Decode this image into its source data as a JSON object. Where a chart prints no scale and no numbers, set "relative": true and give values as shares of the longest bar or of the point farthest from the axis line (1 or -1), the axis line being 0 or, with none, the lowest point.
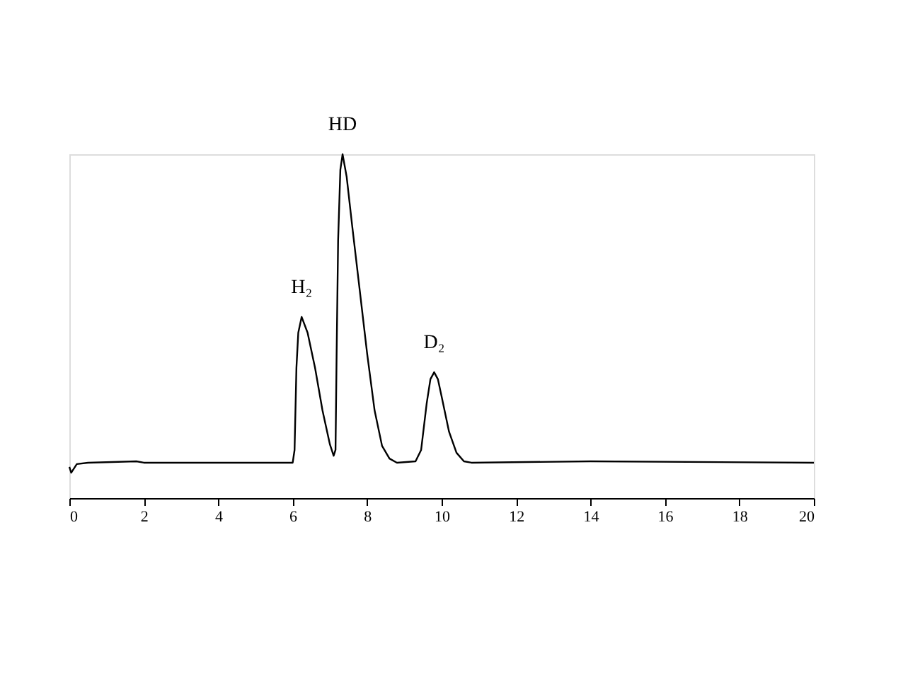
{
  "chart_data": {
    "type": "line",
    "relative": true,
    "color": "#000000",
    "grid": false,
    "marker": "none",
    "line_style": "solid",
    "tick_labels": "x",
    "xlim": [
      0,
      20
    ],
    "xticks": [
      0,
      2,
      4,
      6,
      8,
      10,
      12,
      14,
      16,
      18,
      20
    ],
    "x": [
      0,
      0.05,
      0.2,
      0.5,
      1.8,
      2,
      6.0,
      6.05,
      6.1,
      6.15,
      6.24,
      6.4,
      6.6,
      6.8,
      7.0,
      7.1,
      7.15,
      7.18,
      7.22,
      7.28,
      7.34,
      7.45,
      7.6,
      7.8,
      8.0,
      8.2,
      8.4,
      8.6,
      8.8,
      9.3,
      9.45,
      9.6,
      9.7,
      9.8,
      9.9,
      10.0,
      10.2,
      10.4,
      10.6,
      10.8,
      14,
      20
    ],
    "values": [
      0.091,
      0.074,
      0.099,
      0.103,
      0.107,
      0.103,
      0.103,
      0.14,
      0.379,
      0.481,
      0.527,
      0.481,
      0.379,
      0.255,
      0.156,
      0.123,
      0.14,
      0.42,
      0.749,
      0.955,
      1,
      0.934,
      0.79,
      0.605,
      0.42,
      0.255,
      0.152,
      0.115,
      0.103,
      0.107,
      0.14,
      0.276,
      0.346,
      0.366,
      0.346,
      0.296,
      0.193,
      0.132,
      0.107,
      0.103,
      0.107,
      0.103
    ],
    "annotations": [
      {
        "text": "H₂",
        "x": 6.24,
        "y": 0.527
      },
      {
        "text": "HD",
        "x": 7.34,
        "y": 1
      },
      {
        "text": "D₂",
        "x": 9.8,
        "y": 0.366
      }
    ]
  }
}
